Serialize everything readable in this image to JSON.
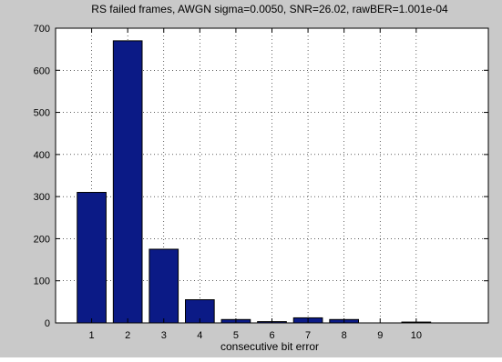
{
  "chart_data": {
    "type": "bar",
    "title": "RS failed frames, AWGN sigma=0.0050, SNR=26.02, rawBER=1.001e-04",
    "xlabel": "consecutive bit error",
    "ylabel": "",
    "categories": [
      "1",
      "2",
      "3",
      "4",
      "5",
      "6",
      "7",
      "8",
      "9",
      "10"
    ],
    "values": [
      310,
      670,
      175,
      55,
      8,
      3,
      12,
      8,
      0,
      2
    ],
    "xlim": [
      0,
      12
    ],
    "ylim": [
      0,
      700
    ],
    "yticks": [
      "0",
      "100",
      "200",
      "300",
      "400",
      "500",
      "600",
      "700"
    ],
    "grid": true,
    "bar_color": "#0b1a86",
    "figure_background": "#c9c9c9",
    "axes_background": "#ffffff"
  }
}
